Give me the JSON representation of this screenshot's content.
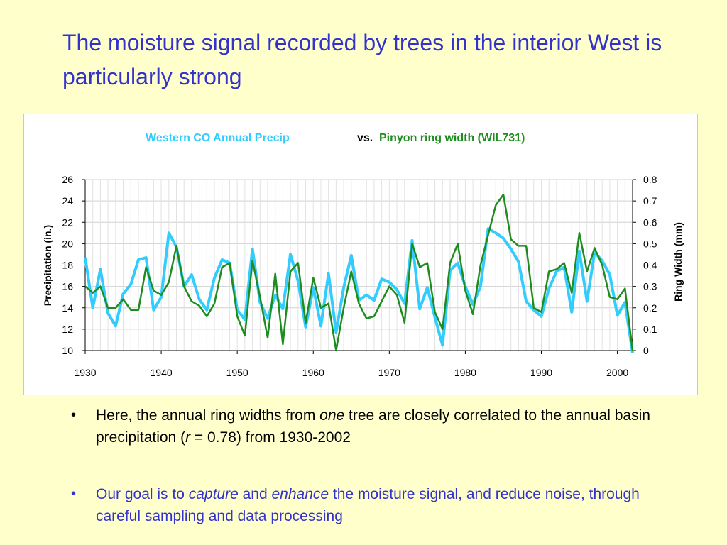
{
  "slide": {
    "title": "The moisture signal recorded by trees in the interior West is particularly strong",
    "title_color": "#3333CC",
    "background": "#FFFFCC"
  },
  "bullets": [
    {
      "bullet_glyph": "•",
      "parts": [
        {
          "text": "Here, the annual ring widths from ",
          "italic": false
        },
        {
          "text": "one",
          "italic": true
        },
        {
          "text": " tree are closely correlated to the annual basin precipitation (",
          "italic": false
        },
        {
          "text": "r",
          "italic": true
        },
        {
          "text": " = 0.78) from 1930-2002",
          "italic": false
        }
      ],
      "color": "#000000"
    },
    {
      "bullet_glyph": "•",
      "parts": [
        {
          "text": "Our goal is to ",
          "italic": false
        },
        {
          "text": "capture",
          "italic": true
        },
        {
          "text": " and ",
          "italic": false
        },
        {
          "text": "enhance",
          "italic": true
        },
        {
          "text": " the moisture signal, and reduce noise, through careful sampling and data processing",
          "italic": false
        }
      ],
      "color": "#3333CC"
    }
  ],
  "chart_data": {
    "type": "line",
    "legend": {
      "precip_label": "Western CO Annual Precip",
      "vs_label": "vs.",
      "ring_label": "Pinyon ring width (WIL731)",
      "placement": "top-center"
    },
    "xlabel": "",
    "ylabel": "Precipitation (in.)",
    "y2label": "Ring Width (mm)",
    "xlim": [
      1930,
      2002
    ],
    "ylim": [
      10,
      26
    ],
    "y2lim": [
      0,
      0.8
    ],
    "x_ticks": [
      1930,
      1940,
      1950,
      1960,
      1970,
      1980,
      1990,
      2000
    ],
    "y_ticks": [
      10,
      12,
      14,
      16,
      18,
      20,
      22,
      24,
      26
    ],
    "y2_ticks": [
      0,
      0.1,
      0.2,
      0.3,
      0.4,
      0.5,
      0.6,
      0.7,
      0.8
    ],
    "grid": true,
    "series": [
      {
        "name": "Western CO Annual Precip",
        "axis": "left",
        "color": "#33CCFF",
        "x": [
          1930,
          1931,
          1932,
          1933,
          1934,
          1935,
          1936,
          1937,
          1938,
          1939,
          1940,
          1941,
          1942,
          1943,
          1944,
          1945,
          1946,
          1947,
          1948,
          1949,
          1950,
          1951,
          1952,
          1953,
          1954,
          1955,
          1956,
          1957,
          1958,
          1959,
          1960,
          1961,
          1962,
          1963,
          1964,
          1965,
          1966,
          1967,
          1968,
          1969,
          1970,
          1971,
          1972,
          1973,
          1974,
          1975,
          1976,
          1977,
          1978,
          1979,
          1980,
          1981,
          1982,
          1983,
          1984,
          1985,
          1986,
          1987,
          1988,
          1989,
          1990,
          1991,
          1992,
          1993,
          1994,
          1995,
          1996,
          1997,
          1998,
          1999,
          2000,
          2001,
          2002
        ],
        "values": [
          18.7,
          14.0,
          17.6,
          13.5,
          12.3,
          15.3,
          16.2,
          18.5,
          18.7,
          13.8,
          15.0,
          21.0,
          19.7,
          16.0,
          17.1,
          14.8,
          13.8,
          16.8,
          18.5,
          18.2,
          13.8,
          12.9,
          19.5,
          14.5,
          13.0,
          15.2,
          13.9,
          19.0,
          16.5,
          12.2,
          15.9,
          12.3,
          17.2,
          11.7,
          15.9,
          18.9,
          14.7,
          15.2,
          14.7,
          16.7,
          16.4,
          15.7,
          14.4,
          20.3,
          13.9,
          15.9,
          13.1,
          10.5,
          17.5,
          18.2,
          16.0,
          14.3,
          16.0,
          21.4,
          21.0,
          20.5,
          19.5,
          18.3,
          14.6,
          13.8,
          13.2,
          15.8,
          17.4,
          17.8,
          13.6,
          19.3,
          14.6,
          19.2,
          18.4,
          17.1,
          13.3,
          14.5,
          9.8
        ]
      },
      {
        "name": "Pinyon ring width (WIL731)",
        "axis": "right",
        "color": "#1E8C1E",
        "x": [
          1930,
          1931,
          1932,
          1933,
          1934,
          1935,
          1936,
          1937,
          1938,
          1939,
          1940,
          1941,
          1942,
          1943,
          1944,
          1945,
          1946,
          1947,
          1948,
          1949,
          1950,
          1951,
          1952,
          1953,
          1954,
          1955,
          1956,
          1957,
          1958,
          1959,
          1960,
          1961,
          1962,
          1963,
          1964,
          1965,
          1966,
          1967,
          1968,
          1969,
          1970,
          1971,
          1972,
          1973,
          1974,
          1975,
          1976,
          1977,
          1978,
          1979,
          1980,
          1981,
          1982,
          1983,
          1984,
          1985,
          1986,
          1987,
          1988,
          1989,
          1990,
          1991,
          1992,
          1993,
          1994,
          1995,
          1996,
          1997,
          1998,
          1999,
          2000,
          2001,
          2002
        ],
        "values": [
          0.3,
          0.27,
          0.3,
          0.2,
          0.2,
          0.24,
          0.19,
          0.19,
          0.39,
          0.28,
          0.26,
          0.32,
          0.49,
          0.3,
          0.23,
          0.21,
          0.16,
          0.22,
          0.39,
          0.41,
          0.16,
          0.07,
          0.42,
          0.25,
          0.06,
          0.36,
          0.03,
          0.37,
          0.41,
          0.13,
          0.34,
          0.2,
          0.22,
          0.0,
          0.2,
          0.37,
          0.22,
          0.15,
          0.16,
          0.23,
          0.3,
          0.26,
          0.13,
          0.5,
          0.39,
          0.41,
          0.18,
          0.1,
          0.41,
          0.5,
          0.28,
          0.17,
          0.4,
          0.54,
          0.68,
          0.73,
          0.52,
          0.49,
          0.49,
          0.2,
          0.18,
          0.37,
          0.38,
          0.41,
          0.27,
          0.55,
          0.37,
          0.48,
          0.4,
          0.25,
          0.24,
          0.29,
          0.0
        ]
      }
    ]
  }
}
